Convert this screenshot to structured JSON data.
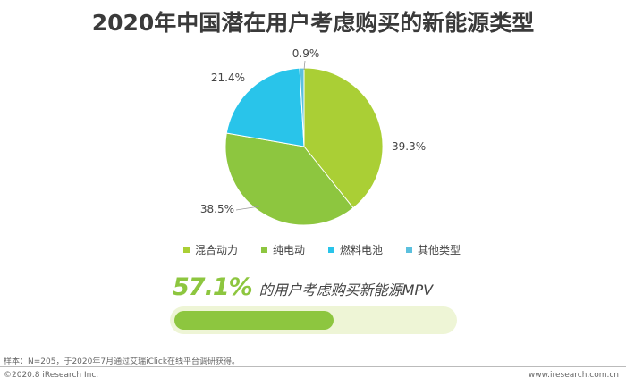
{
  "title": "2020年中国潜在用户考虑购买的新能源类型",
  "chart_data": {
    "type": "pie",
    "slices": [
      {
        "label": "混合动力",
        "value": 39.3,
        "value_label": "39.3%",
        "color": "#aacf35"
      },
      {
        "label": "纯电动",
        "value": 38.5,
        "value_label": "38.5%",
        "color": "#8dc63f"
      },
      {
        "label": "燃料电池",
        "value": 21.4,
        "value_label": "21.4%",
        "color": "#29c4ea"
      },
      {
        "label": "其他类型",
        "value": 0.9,
        "value_label": "0.9%",
        "color": "#5bc0de"
      }
    ],
    "legend_position": "bottom"
  },
  "stat": {
    "value": "57.1%",
    "label": "的用户考虑购买新能源MPV",
    "fraction": 0.571,
    "fill_color": "#8dc63f",
    "track_color": "#eef5d6"
  },
  "footer": {
    "note": "样本：N=205，于2020年7月通过艾瑞iClick在线平台调研获得。",
    "copyright": "©2020.8 iResearch Inc.",
    "website": "www.iresearch.com.cn"
  }
}
